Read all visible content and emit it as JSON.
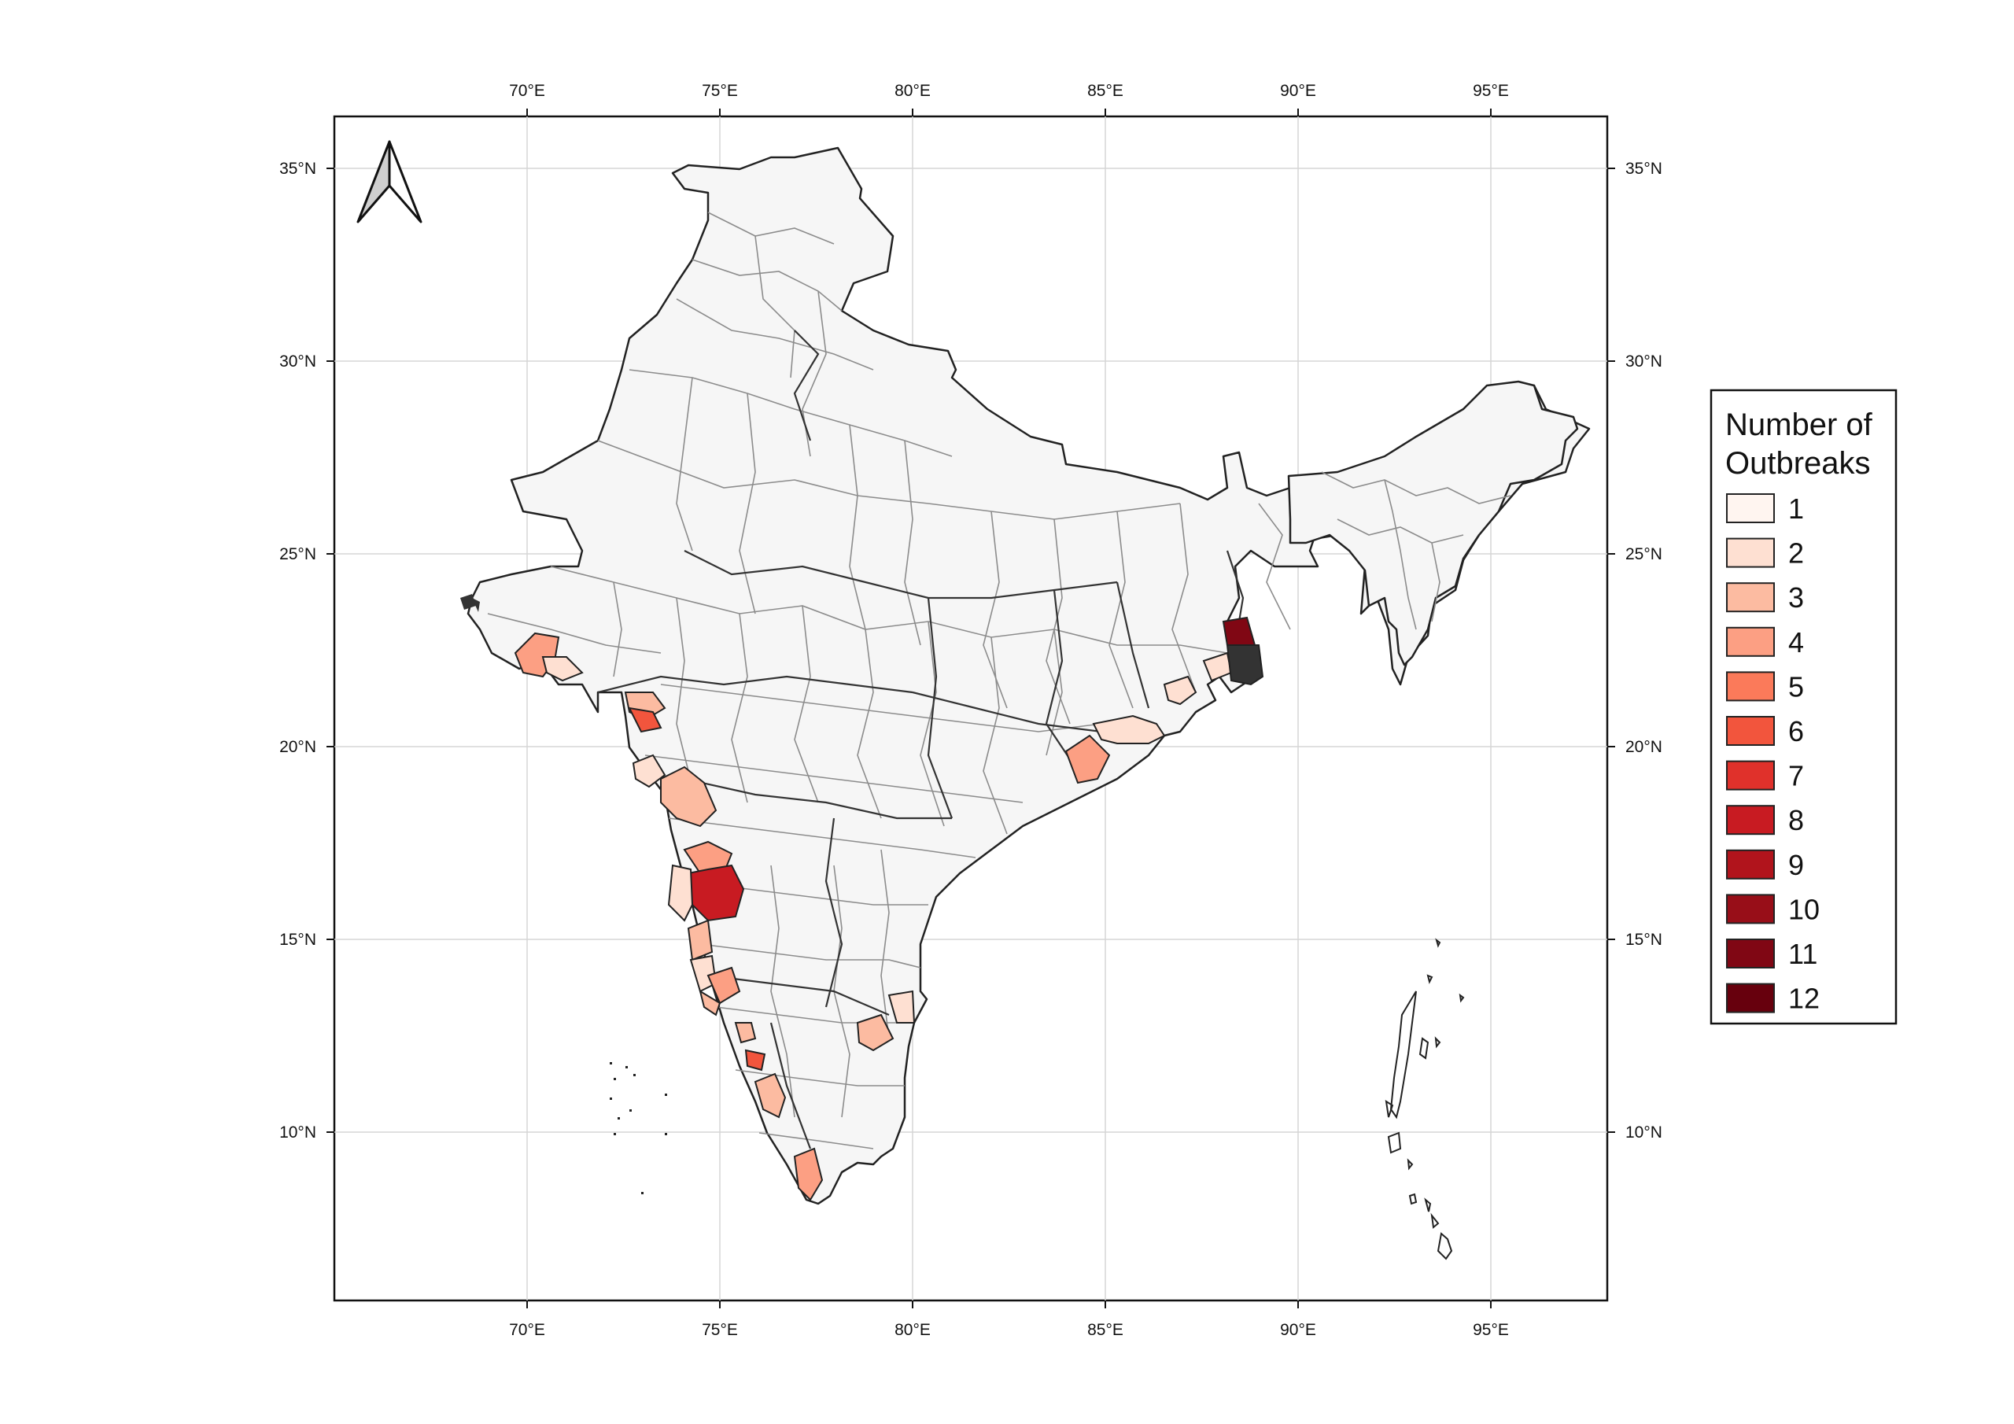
{
  "map": {
    "lon_labels": [
      "70°E",
      "75°E",
      "80°E",
      "85°E",
      "90°E",
      "95°E"
    ],
    "lat_labels": [
      "35°N",
      "30°N",
      "25°N",
      "20°N",
      "15°N",
      "10°N"
    ],
    "north_arrow": "north-arrow-icon",
    "base_color": "#f6f6f6",
    "border_color": "#8c8c8c"
  },
  "legend": {
    "title_line1": "Number of",
    "title_line2": "Outbreaks",
    "items": [
      {
        "label": "1",
        "color": "#fff5f0"
      },
      {
        "label": "2",
        "color": "#fee0d2"
      },
      {
        "label": "3",
        "color": "#fcbba1"
      },
      {
        "label": "4",
        "color": "#fc9f83"
      },
      {
        "label": "5",
        "color": "#fb7a5a"
      },
      {
        "label": "6",
        "color": "#f2553d"
      },
      {
        "label": "7",
        "color": "#e0312b"
      },
      {
        "label": "8",
        "color": "#c81b22"
      },
      {
        "label": "9",
        "color": "#b1141c"
      },
      {
        "label": "10",
        "color": "#980e18"
      },
      {
        "label": "11",
        "color": "#800714"
      },
      {
        "label": "12",
        "color": "#67000d"
      }
    ]
  }
}
